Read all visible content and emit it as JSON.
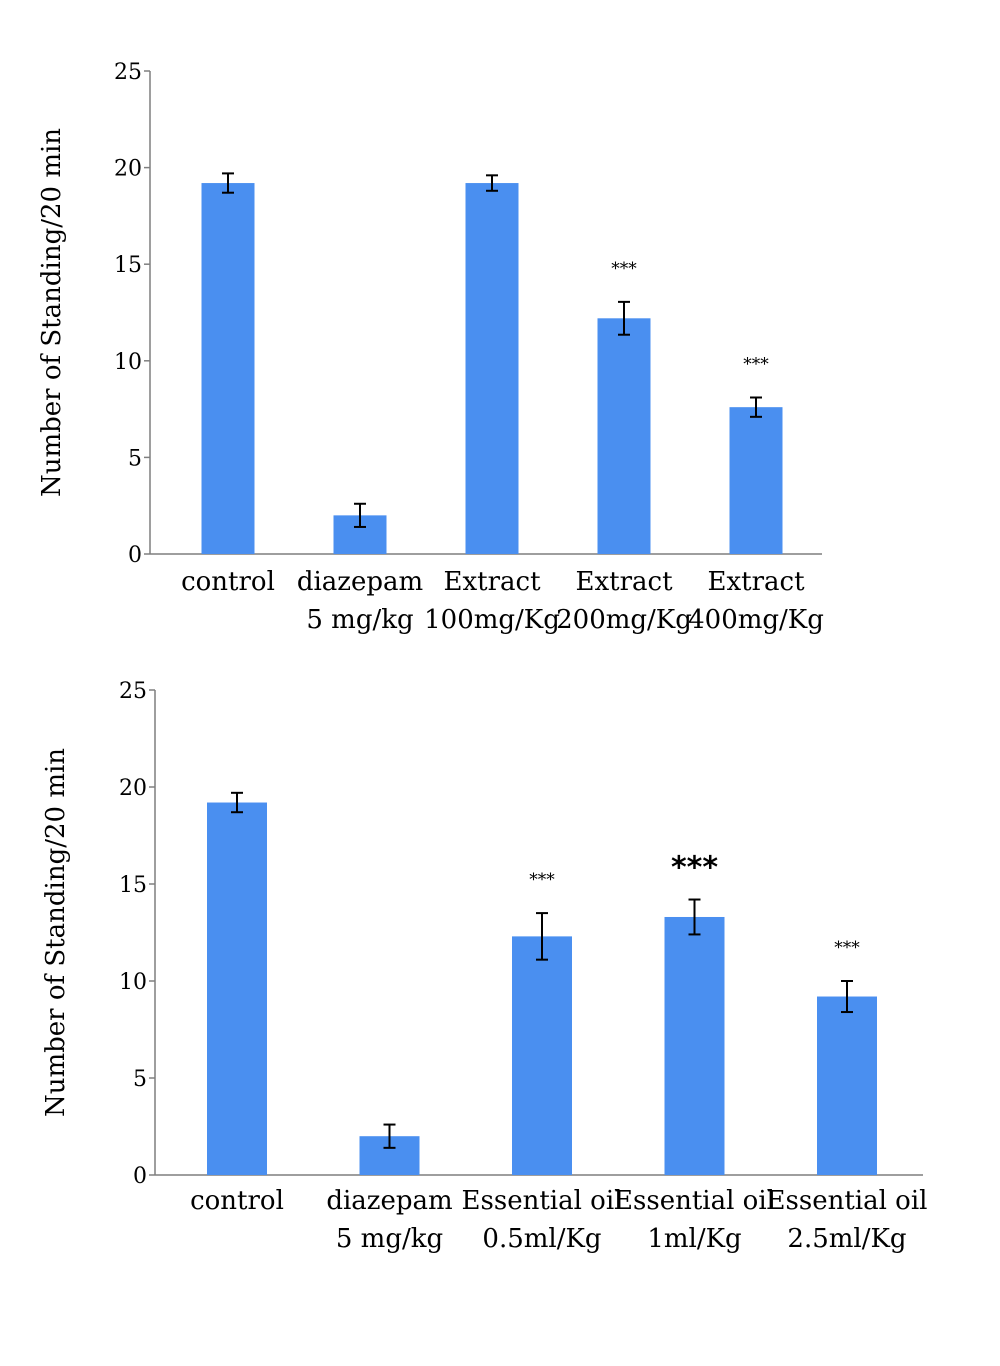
{
  "colors": {
    "bar": "#4a8ff0",
    "axis": "#7f7f7f",
    "error": "#000000"
  },
  "chart_data": [
    {
      "type": "bar",
      "ylabel": "Number of Standing/20 min",
      "ylim": [
        0,
        25
      ],
      "yticks": [
        "0",
        "5",
        "10",
        "15",
        "20",
        "25"
      ],
      "categories": [
        [
          "control"
        ],
        [
          "diazepam",
          "5 mg/kg"
        ],
        [
          "Extract",
          "100mg/Kg"
        ],
        [
          "Extract",
          "200mg/Kg"
        ],
        [
          "Extract",
          "400mg/Kg"
        ]
      ],
      "values": [
        19.2,
        2.0,
        19.2,
        12.2,
        7.6
      ],
      "errors": [
        0.5,
        0.6,
        0.4,
        0.85,
        0.5
      ],
      "annotations": [
        "",
        "",
        "",
        "***",
        "***"
      ]
    },
    {
      "type": "bar",
      "ylabel": "Number of Standing/20 min",
      "ylim": [
        0,
        25
      ],
      "yticks": [
        "0",
        "5",
        "10",
        "15",
        "20",
        "25"
      ],
      "categories": [
        [
          "control"
        ],
        [
          "diazepam",
          "5 mg/kg"
        ],
        [
          "Essential oil",
          "0.5ml/Kg"
        ],
        [
          "Essential oil",
          "1ml/Kg"
        ],
        [
          "Essential oil",
          "2.5ml/Kg"
        ]
      ],
      "values": [
        19.2,
        2.0,
        12.3,
        13.3,
        9.2
      ],
      "errors": [
        0.5,
        0.6,
        1.2,
        0.9,
        0.8
      ],
      "annotations": [
        "",
        "",
        "***",
        "***",
        "***"
      ]
    }
  ]
}
